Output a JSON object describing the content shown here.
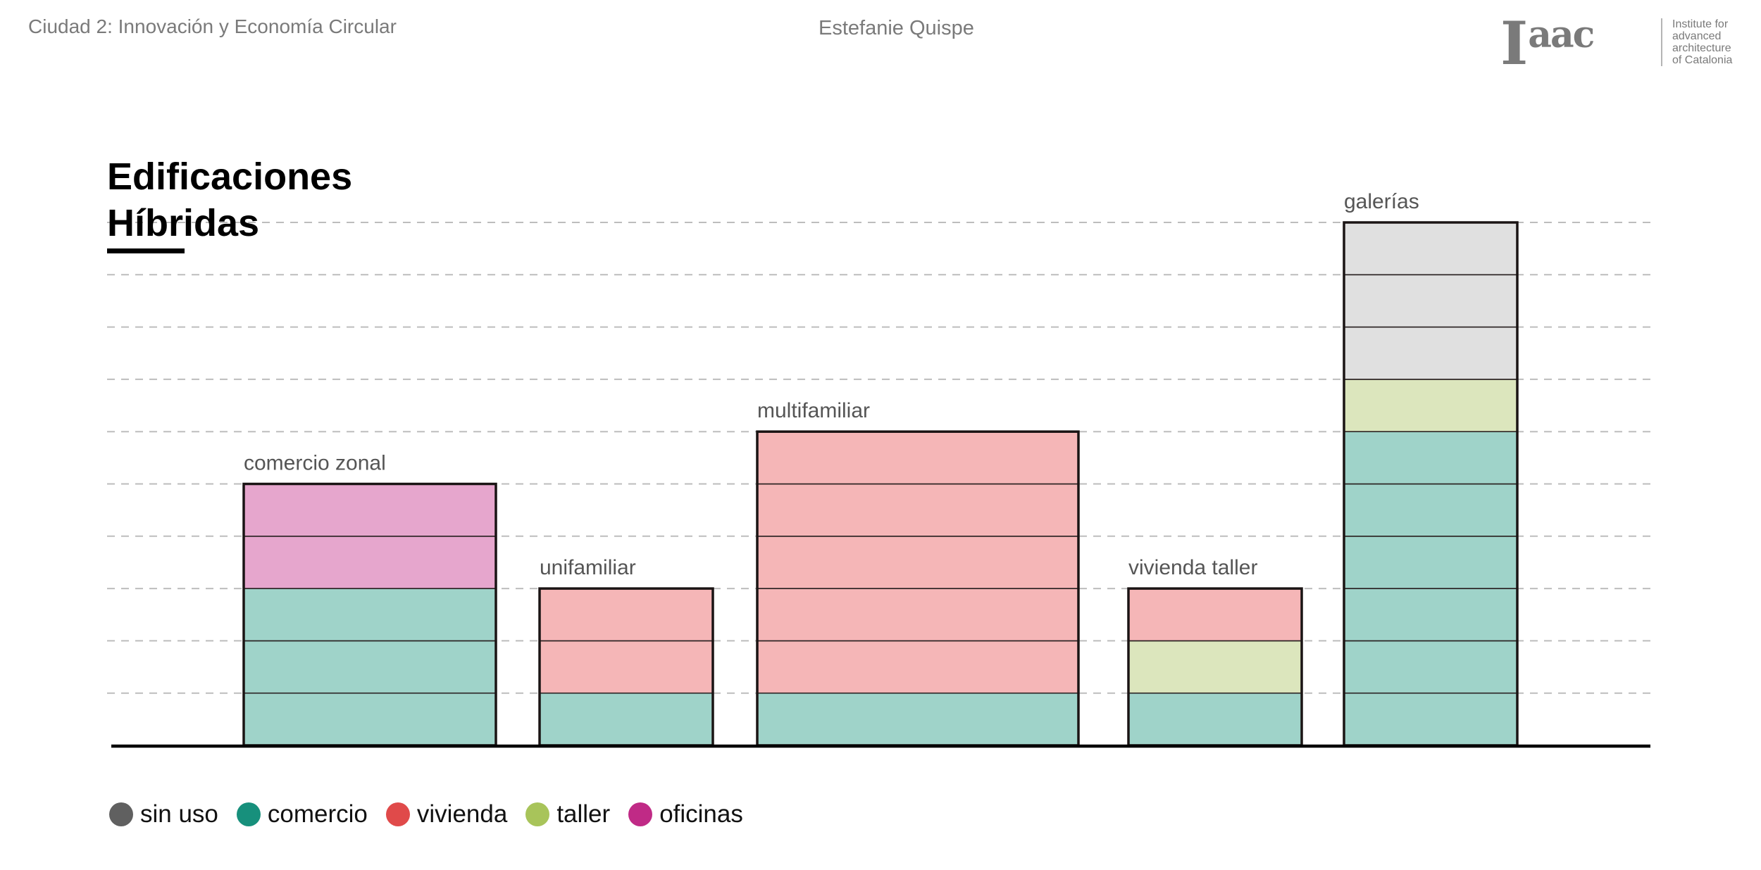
{
  "header": {
    "course": "Ciudad 2: Innovación y Economía Circular",
    "author": "Estefanie Quispe"
  },
  "logo": {
    "mark_main": "I",
    "mark_sup": "aac",
    "lines": [
      "Institute for",
      "advanced",
      "architecture",
      "of Catalonia"
    ]
  },
  "title": {
    "line1": "Edificaciones",
    "line2": "Híbridas"
  },
  "chart_data": {
    "type": "bar",
    "stacked": true,
    "title": "Edificaciones Híbridas",
    "xlabel": "",
    "ylabel": "",
    "unit": "floors",
    "ylim": [
      0,
      10
    ],
    "grid": true,
    "categories": [
      "comercio zonal",
      "unifamiliar",
      "multifamiliar",
      "vivienda taller",
      "galerías"
    ],
    "series": [
      {
        "name": "comercio",
        "values": [
          3,
          1,
          1,
          1,
          6
        ]
      },
      {
        "name": "vivienda",
        "values": [
          0,
          2,
          5,
          1,
          0
        ]
      },
      {
        "name": "taller",
        "values": [
          0,
          0,
          0,
          1,
          1
        ]
      },
      {
        "name": "oficinas",
        "values": [
          2,
          0,
          0,
          0,
          0
        ]
      },
      {
        "name": "sin uso",
        "values": [
          0,
          0,
          0,
          0,
          3
        ]
      }
    ],
    "stack_order": [
      [
        "comercio",
        "oficinas"
      ],
      [
        "comercio",
        "vivienda"
      ],
      [
        "comercio",
        "vivienda"
      ],
      [
        "comercio",
        "taller",
        "vivienda"
      ],
      [
        "comercio",
        "taller",
        "sin uso"
      ]
    ],
    "fill_colors": {
      "sin uso": "#e0e0e0",
      "comercio": "#9fd3c9",
      "vivienda": "#f5b6b7",
      "taller": "#dce6bd",
      "oficinas": "#e6a6cd"
    }
  },
  "legend": [
    {
      "label": "sin uso",
      "color": "#606060"
    },
    {
      "label": "comercio",
      "color": "#17907c"
    },
    {
      "label": "vivienda",
      "color": "#e04a4a"
    },
    {
      "label": "taller",
      "color": "#a8c45a"
    },
    {
      "label": "oficinas",
      "color": "#c02a86"
    }
  ]
}
